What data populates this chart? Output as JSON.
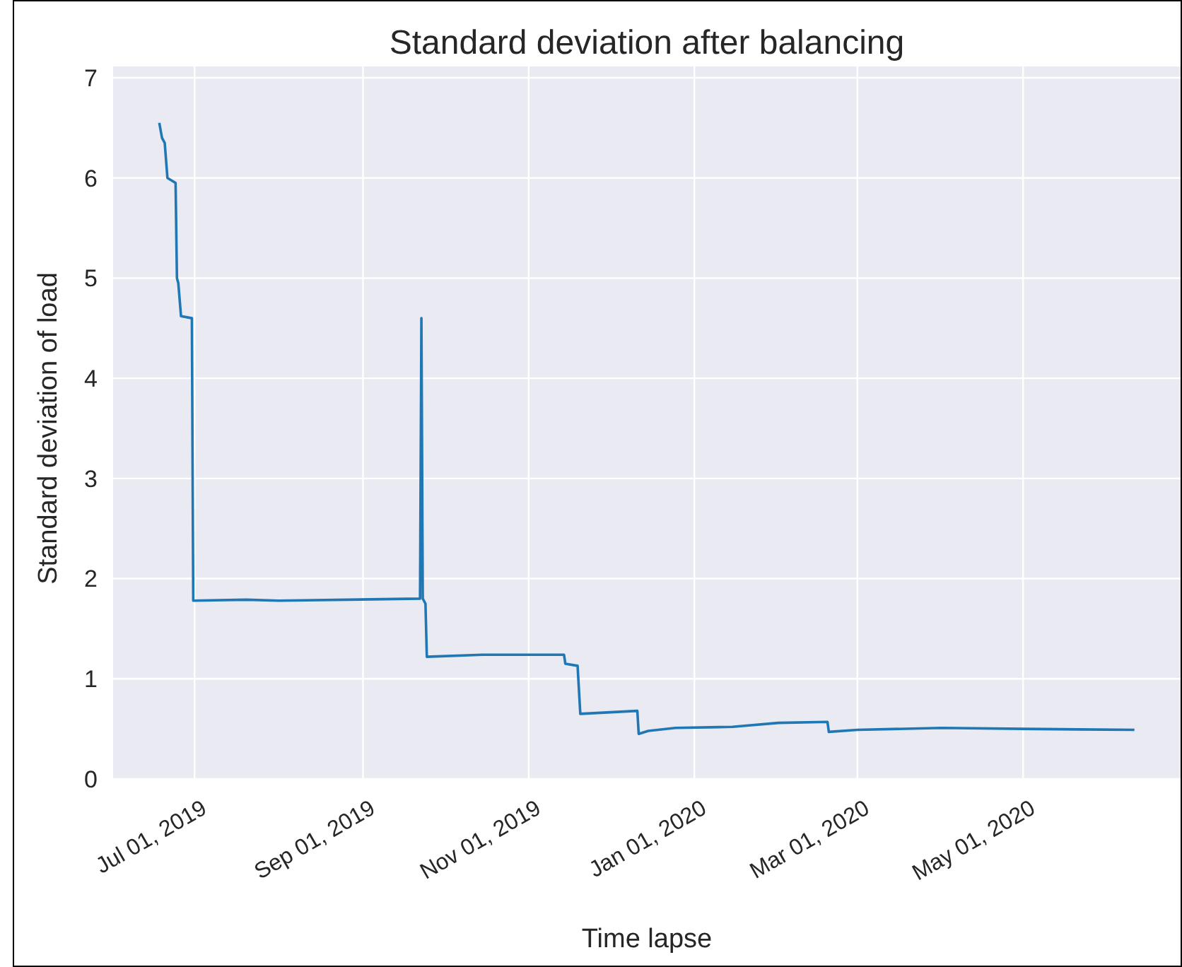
{
  "chart_data": {
    "type": "line",
    "title": "Standard deviation after balancing",
    "xlabel": "Time lapse",
    "ylabel": "Standard deviation of load",
    "x": [
      "2019-06-18",
      "2019-06-19",
      "2019-06-20",
      "2019-06-21",
      "2019-06-24",
      "2019-06-24T12:00",
      "2019-06-25",
      "2019-06-26",
      "2019-06-30",
      "2019-06-30T12:00",
      "2019-07-20",
      "2019-08-01",
      "2019-09-22",
      "2019-09-22T12:00",
      "2019-09-23",
      "2019-09-24",
      "2019-09-24T12:00",
      "2019-10-15",
      "2019-11-14",
      "2019-11-14T12:00",
      "2019-11-19",
      "2019-11-20",
      "2019-12-11",
      "2019-12-11T12:00",
      "2019-12-15",
      "2019-12-25",
      "2020-01-15",
      "2020-02-01",
      "2020-02-19",
      "2020-02-19T12:00",
      "2020-03-01",
      "2020-04-01",
      "2020-05-01",
      "2020-06-11"
    ],
    "series": [
      {
        "color": "#1f77b4",
        "values": [
          6.55,
          6.4,
          6.35,
          6.0,
          5.95,
          5.0,
          4.95,
          4.62,
          4.6,
          1.78,
          1.79,
          1.78,
          1.8,
          4.6,
          1.8,
          1.75,
          1.22,
          1.24,
          1.24,
          1.15,
          1.13,
          0.65,
          0.68,
          0.45,
          0.48,
          0.51,
          0.52,
          0.56,
          0.57,
          0.47,
          0.49,
          0.51,
          0.5,
          0.49
        ]
      }
    ],
    "xlim": [
      "2019-06-01",
      "2020-06-28"
    ],
    "xticks": [
      {
        "value": "2019-07-01",
        "label": "Jul 01, 2019"
      },
      {
        "value": "2019-09-01",
        "label": "Sep 01, 2019"
      },
      {
        "value": "2019-11-01",
        "label": "Nov 01, 2019"
      },
      {
        "value": "2020-01-01",
        "label": "Jan 01, 2020"
      },
      {
        "value": "2020-03-01",
        "label": "Mar 01, 2020"
      },
      {
        "value": "2020-05-01",
        "label": "May 01, 2020"
      }
    ],
    "ylim": [
      0,
      7
    ],
    "yticks": [
      0,
      1,
      2,
      3,
      4,
      5,
      6,
      7
    ],
    "grid": true,
    "line_style": "solid",
    "marker": "none"
  }
}
